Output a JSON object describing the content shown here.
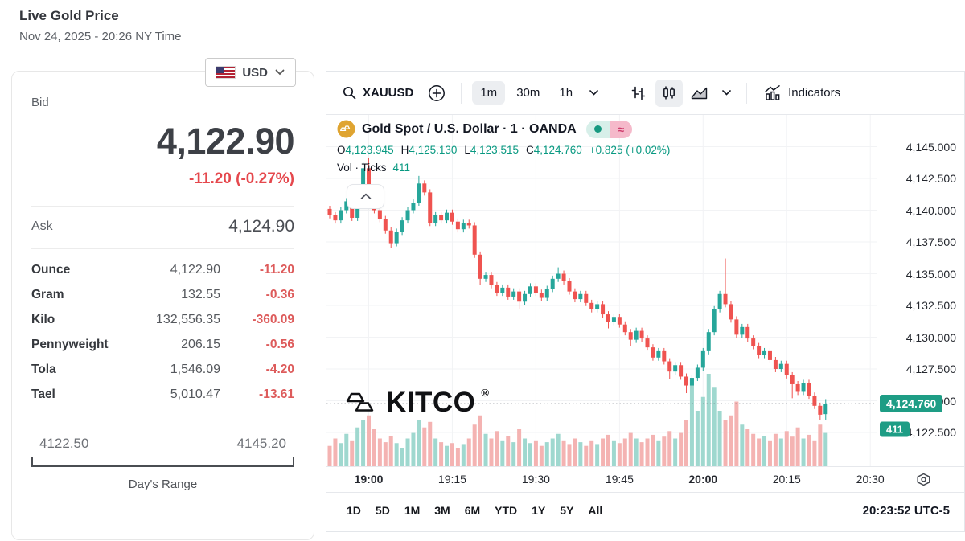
{
  "header": {
    "title": "Live Gold Price",
    "datetime": "Nov 24, 2025 - 20:26 NY Time"
  },
  "quote": {
    "currency": "USD",
    "bid_label": "Bid",
    "bid": "4,122.90",
    "change": "-11.20 (-0.27%)",
    "ask_label": "Ask",
    "ask": "4,124.90",
    "units": [
      {
        "label": "Ounce",
        "value": "4,122.90",
        "change": "-11.20"
      },
      {
        "label": "Gram",
        "value": "132.55",
        "change": "-0.36"
      },
      {
        "label": "Kilo",
        "value": "132,556.35",
        "change": "-360.09"
      },
      {
        "label": "Pennyweight",
        "value": "206.15",
        "change": "-0.56"
      },
      {
        "label": "Tola",
        "value": "1,546.09",
        "change": "-4.20"
      },
      {
        "label": "Tael",
        "value": "5,010.47",
        "change": "-13.61"
      }
    ],
    "range": {
      "low": "4122.50",
      "high": "4145.20",
      "label": "Day's Range"
    }
  },
  "toolbar": {
    "symbol": "XAUUSD",
    "intervals": [
      "1m",
      "30m",
      "1h"
    ],
    "active_interval": "1m",
    "active_style": "candles",
    "indicators_label": "Indicators"
  },
  "legend": {
    "title": "Gold Spot / U.S. Dollar · 1 · OANDA",
    "approx_symbol": "≈",
    "ohlc": [
      {
        "key": "O",
        "value": "4,123.945"
      },
      {
        "key": "H",
        "value": "4,125.130"
      },
      {
        "key": "L",
        "value": "4,123.515"
      },
      {
        "key": "C",
        "value": "4,124.760"
      }
    ],
    "ohlc_change": "+0.825 (+0.02%)",
    "vol_label": "Vol · Ticks",
    "vol_value": "411"
  },
  "watermark": {
    "text": "KITCO",
    "reg": "®"
  },
  "bottombar": {
    "ranges": [
      "1D",
      "5D",
      "1M",
      "3M",
      "6M",
      "YTD",
      "1Y",
      "5Y",
      "All"
    ],
    "clock": "20:23:52 UTC-5"
  },
  "colors": {
    "up": "#26a69a",
    "down": "#ef5350",
    "vol_up": "#9fd8cf",
    "vol_down": "#f4b3b2",
    "teal_text": "#089981",
    "badge": "#1e9d85",
    "grid": "#f2f3f5",
    "price_line": "#5d606b",
    "negative_red": "#e5484d"
  },
  "chart_data": {
    "type": "candlestick",
    "title": "Gold Spot / U.S. Dollar · 1 · OANDA",
    "interval": "1m",
    "source": "OANDA",
    "grid": true,
    "xlabel": "",
    "ylabel": "",
    "y_range": [
      4119.8,
      4147.5
    ],
    "y_ticks": [
      {
        "label": "4,145.000",
        "value": 4145.0
      },
      {
        "label": "4,142.500",
        "value": 4142.5
      },
      {
        "label": "4,140.000",
        "value": 4140.0
      },
      {
        "label": "4,137.500",
        "value": 4137.5
      },
      {
        "label": "4,135.000",
        "value": 4135.0
      },
      {
        "label": "4,132.500",
        "value": 4132.5
      },
      {
        "label": "4,130.000",
        "value": 4130.0
      },
      {
        "label": "4,127.500",
        "value": 4127.5
      },
      {
        "label": "4,125.000",
        "value": 4125.0
      },
      {
        "label": "4,122.500",
        "value": 4122.5
      }
    ],
    "x_ticks": [
      {
        "label": "19:00",
        "index": 7,
        "bold": true
      },
      {
        "label": "19:15",
        "index": 22,
        "bold": false
      },
      {
        "label": "19:30",
        "index": 37,
        "bold": false
      },
      {
        "label": "19:45",
        "index": 52,
        "bold": false
      },
      {
        "label": "20:00",
        "index": 67,
        "bold": true
      },
      {
        "label": "20:15",
        "index": 82,
        "bold": false
      },
      {
        "label": "20:30",
        "index": 97,
        "bold": false
      }
    ],
    "start_time": "18:53",
    "end_time": "20:22",
    "open_first": 4140.1,
    "closes": [
      4139.6,
      4139.2,
      4140.0,
      4140.7,
      4139.4,
      4141.2,
      4143.3,
      4140.9,
      4140.0,
      4139.3,
      4138.4,
      4137.4,
      4138.3,
      4139.2,
      4140.0,
      4140.6,
      4142.1,
      4141.4,
      4139.0,
      4139.6,
      4139.2,
      4139.8,
      4139.1,
      4138.5,
      4139.0,
      4138.8,
      4136.5,
      4134.6,
      4134.9,
      4134.1,
      4133.5,
      4133.9,
      4133.2,
      4133.6,
      4132.8,
      4133.4,
      4134.0,
      4133.5,
      4133.1,
      4133.8,
      4134.6,
      4135.0,
      4134.4,
      4133.6,
      4133.0,
      4133.4,
      4132.7,
      4132.2,
      4132.6,
      4131.8,
      4131.2,
      4131.6,
      4131.0,
      4130.4,
      4129.8,
      4130.5,
      4129.9,
      4129.2,
      4128.4,
      4128.9,
      4128.1,
      4127.3,
      4127.8,
      4126.9,
      4126.2,
      4126.8,
      4127.6,
      4128.9,
      4130.4,
      4132.2,
      4133.4,
      4132.6,
      4131.4,
      4130.2,
      4130.8,
      4129.9,
      4129.3,
      4128.6,
      4128.9,
      4128.2,
      4127.5,
      4127.9,
      4127.0,
      4126.3,
      4125.7,
      4126.4,
      4125.4,
      4124.6,
      4123.9,
      4124.76
    ],
    "wick_extra": {
      "6": {
        "h": 4143.8
      },
      "7": {
        "h": 4144.1
      },
      "11": {
        "l": 4137.0
      },
      "16": {
        "h": 4142.7
      },
      "27": {
        "l": 4134.1
      },
      "34": {
        "l": 4132.2
      },
      "41": {
        "h": 4135.5
      },
      "50": {
        "l": 4130.7
      },
      "54": {
        "l": 4129.3
      },
      "61": {
        "l": 4126.7
      },
      "64": {
        "l": 4125.6
      },
      "71": {
        "h": 4136.2
      },
      "83": {
        "l": 4125.2
      },
      "88": {
        "l": 4123.5
      },
      "89": {
        "o": 4123.945,
        "h": 4125.13,
        "l": 4123.515
      }
    },
    "volumes": [
      0.22,
      0.3,
      0.25,
      0.35,
      0.28,
      0.42,
      0.5,
      0.55,
      0.4,
      0.3,
      0.26,
      0.33,
      0.25,
      0.2,
      0.3,
      0.36,
      0.5,
      0.42,
      0.48,
      0.3,
      0.26,
      0.22,
      0.25,
      0.2,
      0.24,
      0.3,
      0.45,
      0.55,
      0.35,
      0.3,
      0.38,
      0.28,
      0.33,
      0.26,
      0.4,
      0.3,
      0.25,
      0.28,
      0.22,
      0.26,
      0.3,
      0.35,
      0.28,
      0.24,
      0.3,
      0.26,
      0.22,
      0.28,
      0.24,
      0.3,
      0.34,
      0.28,
      0.25,
      0.3,
      0.36,
      0.3,
      0.26,
      0.3,
      0.34,
      0.28,
      0.32,
      0.38,
      0.3,
      0.36,
      0.5,
      0.95,
      0.6,
      0.75,
      1.0,
      0.85,
      0.6,
      0.5,
      0.55,
      0.7,
      0.45,
      0.4,
      0.35,
      0.3,
      0.33,
      0.28,
      0.35,
      0.3,
      0.38,
      0.32,
      0.42,
      0.3,
      0.34,
      0.28,
      0.45,
      0.36
    ],
    "price_line": {
      "value": 4124.76,
      "label": "4,124.760"
    },
    "volume_badge": {
      "label": "411",
      "anchor_value": 4122.76
    },
    "last": {
      "open": 4123.945,
      "high": 4125.13,
      "low": 4123.515,
      "close": 4124.76,
      "change": 0.825,
      "change_pct": 0.02,
      "ticks": 411
    }
  }
}
